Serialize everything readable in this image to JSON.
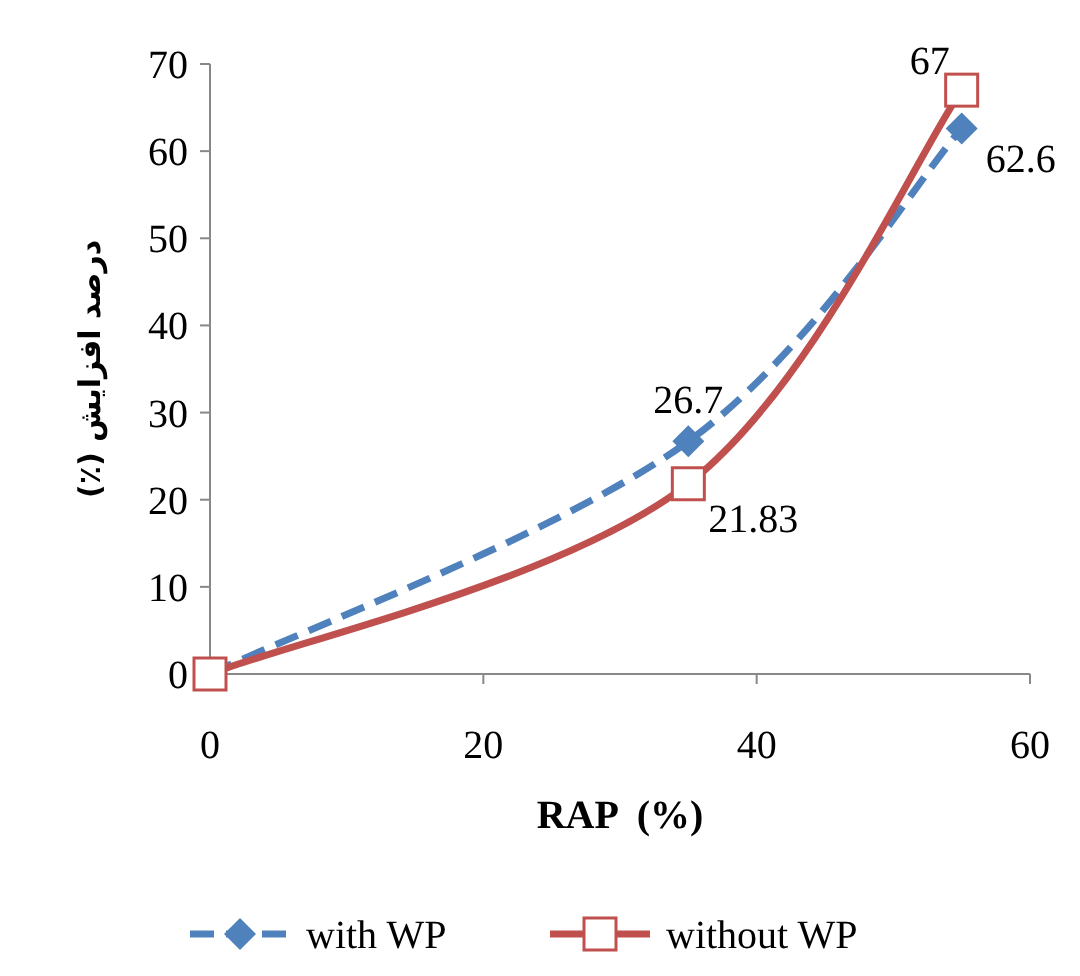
{
  "chart_data": {
    "type": "line",
    "xlabel": "RAP  (%)",
    "ylabel": "درصد افزایش (٪)",
    "xlim": [
      0,
      60
    ],
    "xticks": [
      0,
      20,
      40,
      60
    ],
    "ylim": [
      0,
      70
    ],
    "yticks": [
      0,
      10,
      20,
      30,
      40,
      50,
      60,
      70
    ],
    "legend": "bottom",
    "grid": false,
    "series": [
      {
        "name": "with WP",
        "color": "#4f81bd",
        "x": [
          0,
          35,
          55
        ],
        "values": [
          0,
          26.7,
          62.6
        ],
        "value_labels": [
          null,
          "26.7",
          "62.6"
        ],
        "marker": "diamond",
        "line_style": "dashed"
      },
      {
        "name": "without WP",
        "color": "#c0504d",
        "x": [
          0,
          35,
          55
        ],
        "values": [
          0,
          21.83,
          67
        ],
        "value_labels": [
          null,
          "21.83",
          "67"
        ],
        "marker": "square",
        "line_style": "solid"
      }
    ]
  }
}
